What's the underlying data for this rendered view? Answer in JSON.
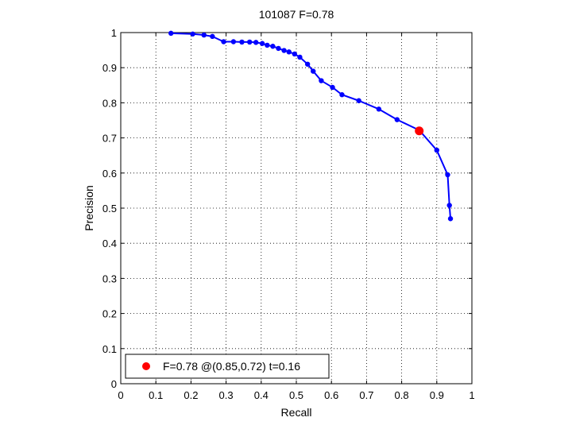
{
  "chart_data": {
    "type": "line",
    "title": "101087 F=0.78",
    "xlabel": "Recall",
    "ylabel": "Precision",
    "xlim": [
      0,
      1
    ],
    "ylim": [
      0,
      1
    ],
    "xticks": [
      0,
      0.1,
      0.2,
      0.3,
      0.4,
      0.5,
      0.6,
      0.7,
      0.8,
      0.9,
      1
    ],
    "yticks": [
      0,
      0.1,
      0.2,
      0.3,
      0.4,
      0.5,
      0.6,
      0.7,
      0.8,
      0.9,
      1
    ],
    "xtick_labels": [
      "0",
      "0.1",
      "0.2",
      "0.3",
      "0.4",
      "0.5",
      "0.6",
      "0.7",
      "0.8",
      "0.9",
      "1"
    ],
    "ytick_labels": [
      "0",
      "0.1",
      "0.2",
      "0.3",
      "0.4",
      "0.5",
      "0.6",
      "0.7",
      "0.8",
      "0.9",
      "1"
    ],
    "grid": true,
    "series": [
      {
        "color": "#0000ff",
        "marker": "dot",
        "x": [
          0.143,
          0.205,
          0.237,
          0.261,
          0.293,
          0.321,
          0.345,
          0.367,
          0.385,
          0.403,
          0.417,
          0.433,
          0.449,
          0.465,
          0.479,
          0.495,
          0.51,
          0.532,
          0.548,
          0.571,
          0.603,
          0.63,
          0.678,
          0.735,
          0.787,
          0.85,
          0.9,
          0.931,
          0.936,
          0.939
        ],
        "y": [
          0.998,
          0.996,
          0.993,
          0.989,
          0.974,
          0.974,
          0.973,
          0.973,
          0.972,
          0.969,
          0.964,
          0.961,
          0.955,
          0.949,
          0.945,
          0.939,
          0.93,
          0.91,
          0.89,
          0.863,
          0.844,
          0.823,
          0.806,
          0.782,
          0.752,
          0.722,
          0.665,
          0.595,
          0.508,
          0.47
        ]
      }
    ],
    "highlight": {
      "x": 0.85,
      "y": 0.72,
      "color": "#ff0000"
    },
    "legend": {
      "position": "bottom-left",
      "label": "F=0.78 @(0.85,0.72) t=0.16",
      "marker_color": "#ff0000"
    }
  }
}
